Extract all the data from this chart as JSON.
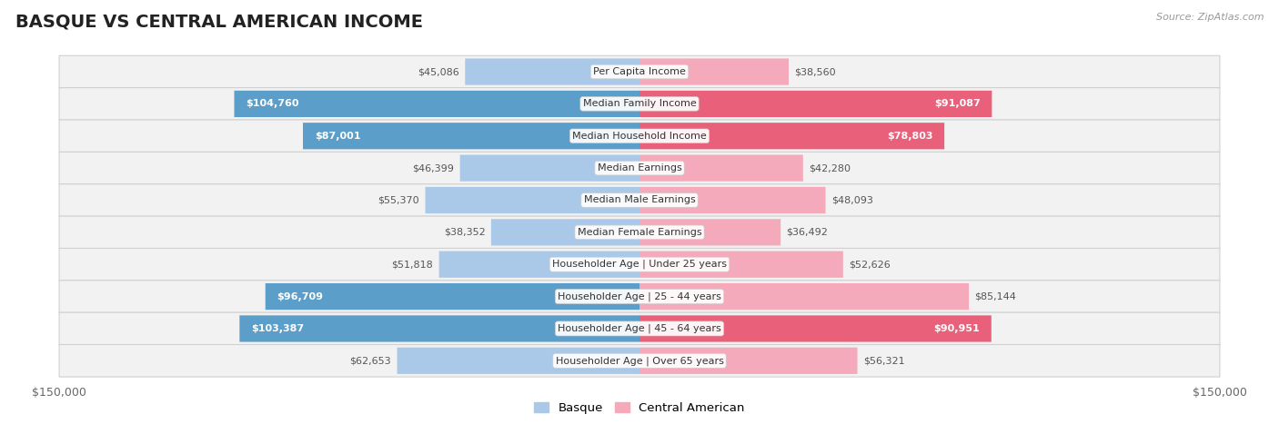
{
  "title": "BASQUE VS CENTRAL AMERICAN INCOME",
  "source": "Source: ZipAtlas.com",
  "categories": [
    "Per Capita Income",
    "Median Family Income",
    "Median Household Income",
    "Median Earnings",
    "Median Male Earnings",
    "Median Female Earnings",
    "Householder Age | Under 25 years",
    "Householder Age | 25 - 44 years",
    "Householder Age | 45 - 64 years",
    "Householder Age | Over 65 years"
  ],
  "basque_values": [
    45086,
    104760,
    87001,
    46399,
    55370,
    38352,
    51818,
    96709,
    103387,
    62653
  ],
  "central_values": [
    38560,
    91087,
    78803,
    42280,
    48093,
    36492,
    52626,
    85144,
    90951,
    56321
  ],
  "basque_labels": [
    "$45,086",
    "$104,760",
    "$87,001",
    "$46,399",
    "$55,370",
    "$38,352",
    "$51,818",
    "$96,709",
    "$103,387",
    "$62,653"
  ],
  "central_labels": [
    "$38,560",
    "$91,087",
    "$78,803",
    "$42,280",
    "$48,093",
    "$36,492",
    "$52,626",
    "$85,144",
    "$90,951",
    "$56,321"
  ],
  "max_value": 150000,
  "basque_color_light": "#aac9e8",
  "basque_color_dark": "#5b9ec9",
  "central_color_light": "#f4aabb",
  "central_color_dark": "#e8607a",
  "basque_label_inside": [
    false,
    true,
    true,
    false,
    false,
    false,
    false,
    true,
    true,
    false
  ],
  "central_label_inside": [
    false,
    true,
    true,
    false,
    false,
    false,
    false,
    false,
    true,
    false
  ],
  "bg_color": "#ffffff",
  "row_bg_color": "#f2f2f2",
  "title_fontsize": 14,
  "label_fontsize": 8.5,
  "legend_fontsize": 9.5
}
